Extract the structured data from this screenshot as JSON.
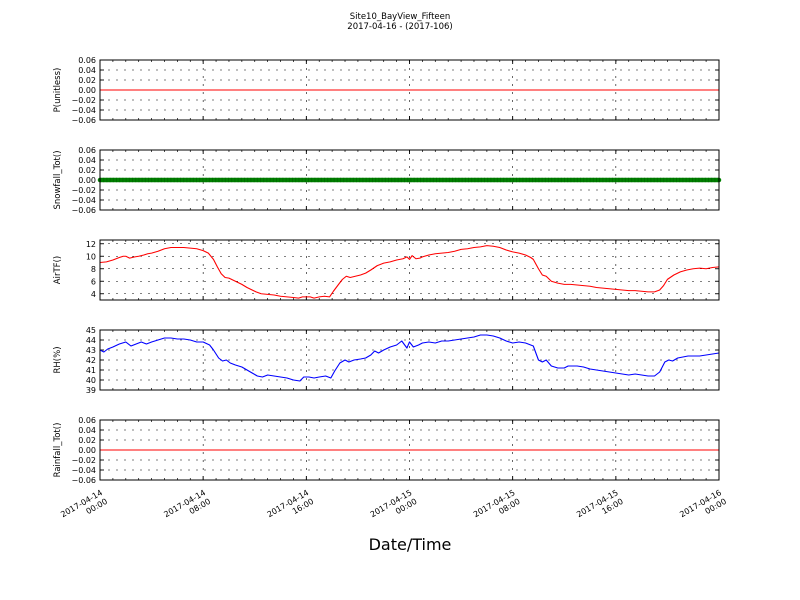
{
  "figure": {
    "title_line1": "Site10_BayView_Fifteen",
    "title_line2": "2017-04-16 - (2017-106)",
    "xlabel": "Date/Time"
  },
  "chart_data": [
    {
      "type": "line",
      "ylabel": "P(unitless)",
      "ylim": [
        -0.06,
        0.06
      ],
      "yticks": [
        -0.06,
        -0.04,
        -0.02,
        0.0,
        0.02,
        0.04,
        0.06
      ],
      "ytick_labels": [
        "−0.06",
        "−0.04",
        "−0.02",
        "0.00",
        "0.02",
        "0.04",
        "0.06"
      ],
      "xlim_hours": [
        0,
        48
      ],
      "grid": true,
      "series": [
        {
          "color": "#ff0000",
          "marker": "none",
          "points": [
            [
              0,
              0
            ],
            [
              48,
              0
            ]
          ]
        }
      ]
    },
    {
      "type": "line",
      "ylabel": "Snowfall_Tot()",
      "ylim": [
        -0.06,
        0.06
      ],
      "yticks": [
        -0.06,
        -0.04,
        -0.02,
        0.0,
        0.02,
        0.04,
        0.06
      ],
      "ytick_labels": [
        "−0.06",
        "−0.04",
        "−0.02",
        "0.00",
        "0.02",
        "0.04",
        "0.06"
      ],
      "xlim_hours": [
        0,
        48
      ],
      "grid": true,
      "series": [
        {
          "color": "#008000",
          "marker": "dots",
          "points": [
            [
              0,
              0
            ],
            [
              48,
              0
            ]
          ]
        }
      ]
    },
    {
      "type": "line",
      "ylabel": "AirTF()",
      "ylim": [
        3,
        12.6
      ],
      "yticks": [
        4,
        6,
        8,
        10,
        12
      ],
      "ytick_labels": [
        "4",
        "6",
        "8",
        "10",
        "12"
      ],
      "xlim_hours": [
        0,
        48
      ],
      "grid": true,
      "series": [
        {
          "color": "#ff0000",
          "marker": "none",
          "points": [
            [
              0,
              9.0
            ],
            [
              0.5,
              9.1
            ],
            [
              1.0,
              9.4
            ],
            [
              1.5,
              9.8
            ],
            [
              1.8,
              10.0
            ],
            [
              2.0,
              10.0
            ],
            [
              2.3,
              9.7
            ],
            [
              2.7,
              9.9
            ],
            [
              3.0,
              10.0
            ],
            [
              3.4,
              10.2
            ],
            [
              3.7,
              10.4
            ],
            [
              4.0,
              10.5
            ],
            [
              4.5,
              10.8
            ],
            [
              5.0,
              11.2
            ],
            [
              5.5,
              11.4
            ],
            [
              6.0,
              11.4
            ],
            [
              6.5,
              11.4
            ],
            [
              7.0,
              11.3
            ],
            [
              7.5,
              11.2
            ],
            [
              8.0,
              10.9
            ],
            [
              8.4,
              10.5
            ],
            [
              8.8,
              9.5
            ],
            [
              9.1,
              8.3
            ],
            [
              9.4,
              7.2
            ],
            [
              9.7,
              6.6
            ],
            [
              10.0,
              6.5
            ],
            [
              10.3,
              6.2
            ],
            [
              10.7,
              5.8
            ],
            [
              11.0,
              5.5
            ],
            [
              11.4,
              5.0
            ],
            [
              11.8,
              4.6
            ],
            [
              12.1,
              4.3
            ],
            [
              12.5,
              4.0
            ],
            [
              13.0,
              3.9
            ],
            [
              13.5,
              3.8
            ],
            [
              14.0,
              3.6
            ],
            [
              14.5,
              3.5
            ],
            [
              15.0,
              3.4
            ],
            [
              15.4,
              3.3
            ],
            [
              15.7,
              3.5
            ],
            [
              16.0,
              3.5
            ],
            [
              16.3,
              3.5
            ],
            [
              16.6,
              3.3
            ],
            [
              17.0,
              3.5
            ],
            [
              17.4,
              3.6
            ],
            [
              17.8,
              3.5
            ],
            [
              18.1,
              4.4
            ],
            [
              18.5,
              5.5
            ],
            [
              18.8,
              6.3
            ],
            [
              19.1,
              6.8
            ],
            [
              19.4,
              6.6
            ],
            [
              19.8,
              6.8
            ],
            [
              20.2,
              7.0
            ],
            [
              20.6,
              7.3
            ],
            [
              21.0,
              7.8
            ],
            [
              21.5,
              8.5
            ],
            [
              22.0,
              8.9
            ],
            [
              22.5,
              9.1
            ],
            [
              23.0,
              9.4
            ],
            [
              23.5,
              9.6
            ],
            [
              23.8,
              9.9
            ],
            [
              24.0,
              9.5
            ],
            [
              24.2,
              10.1
            ],
            [
              24.5,
              9.6
            ],
            [
              24.8,
              9.7
            ],
            [
              25.0,
              9.9
            ],
            [
              25.5,
              10.2
            ],
            [
              26.0,
              10.4
            ],
            [
              26.5,
              10.5
            ],
            [
              27.0,
              10.6
            ],
            [
              27.5,
              10.8
            ],
            [
              28.0,
              11.1
            ],
            [
              28.5,
              11.2
            ],
            [
              29.0,
              11.4
            ],
            [
              29.5,
              11.5
            ],
            [
              30.0,
              11.7
            ],
            [
              30.5,
              11.6
            ],
            [
              31.0,
              11.4
            ],
            [
              31.5,
              11.0
            ],
            [
              32.0,
              10.7
            ],
            [
              32.5,
              10.5
            ],
            [
              33.0,
              10.2
            ],
            [
              33.4,
              9.8
            ],
            [
              33.6,
              9.5
            ],
            [
              34.0,
              8.0
            ],
            [
              34.3,
              7.0
            ],
            [
              34.6,
              6.8
            ],
            [
              35.0,
              6.0
            ],
            [
              35.5,
              5.7
            ],
            [
              36.0,
              5.5
            ],
            [
              36.5,
              5.5
            ],
            [
              37.0,
              5.4
            ],
            [
              37.5,
              5.3
            ],
            [
              38.0,
              5.2
            ],
            [
              38.5,
              5.0
            ],
            [
              39.0,
              4.9
            ],
            [
              39.5,
              4.8
            ],
            [
              40.0,
              4.7
            ],
            [
              40.5,
              4.6
            ],
            [
              41.0,
              4.5
            ],
            [
              41.5,
              4.5
            ],
            [
              42.0,
              4.4
            ],
            [
              42.5,
              4.3
            ],
            [
              43.0,
              4.3
            ],
            [
              43.4,
              4.6
            ],
            [
              43.7,
              5.3
            ],
            [
              44.0,
              6.3
            ],
            [
              44.5,
              7.0
            ],
            [
              45.0,
              7.5
            ],
            [
              45.5,
              7.8
            ],
            [
              46.0,
              8.0
            ],
            [
              46.5,
              8.1
            ],
            [
              47.0,
              8.0
            ],
            [
              47.5,
              8.2
            ],
            [
              48.0,
              8.3
            ]
          ]
        }
      ]
    },
    {
      "type": "line",
      "ylabel": "RH(%)",
      "ylim": [
        39,
        45
      ],
      "yticks": [
        39,
        40,
        41,
        42,
        43,
        44,
        45
      ],
      "ytick_labels": [
        "39",
        "40",
        "41",
        "42",
        "43",
        "44",
        "45"
      ],
      "xlim_hours": [
        0,
        48
      ],
      "grid": true,
      "series": [
        {
          "color": "#0000ff",
          "marker": "none",
          "points": [
            [
              0,
              43.0
            ],
            [
              0.3,
              42.8
            ],
            [
              0.6,
              43.1
            ],
            [
              1.0,
              43.3
            ],
            [
              1.5,
              43.6
            ],
            [
              2.0,
              43.8
            ],
            [
              2.4,
              43.4
            ],
            [
              2.8,
              43.6
            ],
            [
              3.2,
              43.8
            ],
            [
              3.6,
              43.6
            ],
            [
              4.0,
              43.8
            ],
            [
              4.5,
              44.0
            ],
            [
              5.0,
              44.2
            ],
            [
              5.5,
              44.2
            ],
            [
              6.0,
              44.1
            ],
            [
              6.5,
              44.1
            ],
            [
              7.0,
              44.0
            ],
            [
              7.5,
              43.8
            ],
            [
              8.0,
              43.8
            ],
            [
              8.5,
              43.5
            ],
            [
              8.8,
              43.0
            ],
            [
              9.2,
              42.2
            ],
            [
              9.5,
              41.9
            ],
            [
              9.8,
              42.0
            ],
            [
              10.1,
              41.7
            ],
            [
              10.5,
              41.5
            ],
            [
              11.0,
              41.3
            ],
            [
              11.4,
              41.0
            ],
            [
              11.8,
              40.7
            ],
            [
              12.2,
              40.4
            ],
            [
              12.6,
              40.3
            ],
            [
              13.0,
              40.5
            ],
            [
              13.5,
              40.4
            ],
            [
              14.0,
              40.3
            ],
            [
              14.5,
              40.2
            ],
            [
              15.0,
              40.0
            ],
            [
              15.5,
              39.9
            ],
            [
              15.8,
              40.3
            ],
            [
              16.2,
              40.3
            ],
            [
              16.6,
              40.2
            ],
            [
              17.0,
              40.3
            ],
            [
              17.5,
              40.4
            ],
            [
              17.9,
              40.2
            ],
            [
              18.2,
              40.9
            ],
            [
              18.6,
              41.7
            ],
            [
              19.0,
              42.0
            ],
            [
              19.3,
              41.8
            ],
            [
              19.7,
              42.0
            ],
            [
              20.2,
              42.1
            ],
            [
              20.6,
              42.2
            ],
            [
              21.0,
              42.5
            ],
            [
              21.3,
              42.9
            ],
            [
              21.6,
              42.7
            ],
            [
              22.0,
              43.0
            ],
            [
              22.5,
              43.3
            ],
            [
              23.0,
              43.5
            ],
            [
              23.4,
              43.9
            ],
            [
              23.8,
              43.2
            ],
            [
              24.0,
              43.8
            ],
            [
              24.3,
              43.3
            ],
            [
              24.7,
              43.5
            ],
            [
              25.0,
              43.7
            ],
            [
              25.5,
              43.8
            ],
            [
              26.0,
              43.7
            ],
            [
              26.5,
              43.9
            ],
            [
              27.0,
              43.9
            ],
            [
              27.5,
              44.0
            ],
            [
              28.0,
              44.1
            ],
            [
              28.5,
              44.2
            ],
            [
              29.0,
              44.3
            ],
            [
              29.5,
              44.5
            ],
            [
              30.0,
              44.5
            ],
            [
              30.5,
              44.4
            ],
            [
              31.0,
              44.2
            ],
            [
              31.5,
              43.9
            ],
            [
              32.0,
              43.7
            ],
            [
              32.5,
              43.8
            ],
            [
              33.0,
              43.7
            ],
            [
              33.6,
              43.4
            ],
            [
              34.0,
              42.0
            ],
            [
              34.3,
              41.8
            ],
            [
              34.6,
              42.0
            ],
            [
              35.0,
              41.4
            ],
            [
              35.5,
              41.2
            ],
            [
              36.0,
              41.2
            ],
            [
              36.3,
              41.4
            ],
            [
              37.0,
              41.4
            ],
            [
              37.5,
              41.3
            ],
            [
              38.0,
              41.1
            ],
            [
              38.5,
              41.0
            ],
            [
              39.0,
              40.9
            ],
            [
              39.5,
              40.8
            ],
            [
              40.0,
              40.7
            ],
            [
              40.5,
              40.6
            ],
            [
              41.0,
              40.5
            ],
            [
              41.5,
              40.6
            ],
            [
              42.0,
              40.5
            ],
            [
              42.5,
              40.4
            ],
            [
              43.0,
              40.4
            ],
            [
              43.4,
              40.8
            ],
            [
              43.8,
              41.8
            ],
            [
              44.1,
              42.0
            ],
            [
              44.4,
              41.9
            ],
            [
              44.8,
              42.2
            ],
            [
              45.2,
              42.3
            ],
            [
              45.6,
              42.4
            ],
            [
              46.0,
              42.4
            ],
            [
              46.5,
              42.4
            ],
            [
              47.0,
              42.5
            ],
            [
              47.5,
              42.6
            ],
            [
              48.0,
              42.7
            ]
          ]
        }
      ]
    },
    {
      "type": "line",
      "ylabel": "Rainfall_Tot()",
      "ylim": [
        -0.06,
        0.06
      ],
      "yticks": [
        -0.06,
        -0.04,
        -0.02,
        0.0,
        0.02,
        0.04,
        0.06
      ],
      "ytick_labels": [
        "−0.06",
        "−0.04",
        "−0.02",
        "0.00",
        "0.02",
        "0.04",
        "0.06"
      ],
      "xlim_hours": [
        0,
        48
      ],
      "grid": true,
      "series": [
        {
          "color": "#ff0000",
          "marker": "none",
          "points": [
            [
              0,
              0
            ],
            [
              48,
              0
            ]
          ]
        }
      ]
    }
  ],
  "xticks": [
    {
      "hour": 0,
      "line1": "2017-04-14",
      "line2": "00:00"
    },
    {
      "hour": 8,
      "line1": "2017-04-14",
      "line2": "08:00"
    },
    {
      "hour": 16,
      "line1": "2017-04-14",
      "line2": "16:00"
    },
    {
      "hour": 24,
      "line1": "2017-04-15",
      "line2": "00:00"
    },
    {
      "hour": 32,
      "line1": "2017-04-15",
      "line2": "08:00"
    },
    {
      "hour": 40,
      "line1": "2017-04-15",
      "line2": "16:00"
    },
    {
      "hour": 48,
      "line1": "2017-04-16",
      "line2": "00:00"
    }
  ]
}
